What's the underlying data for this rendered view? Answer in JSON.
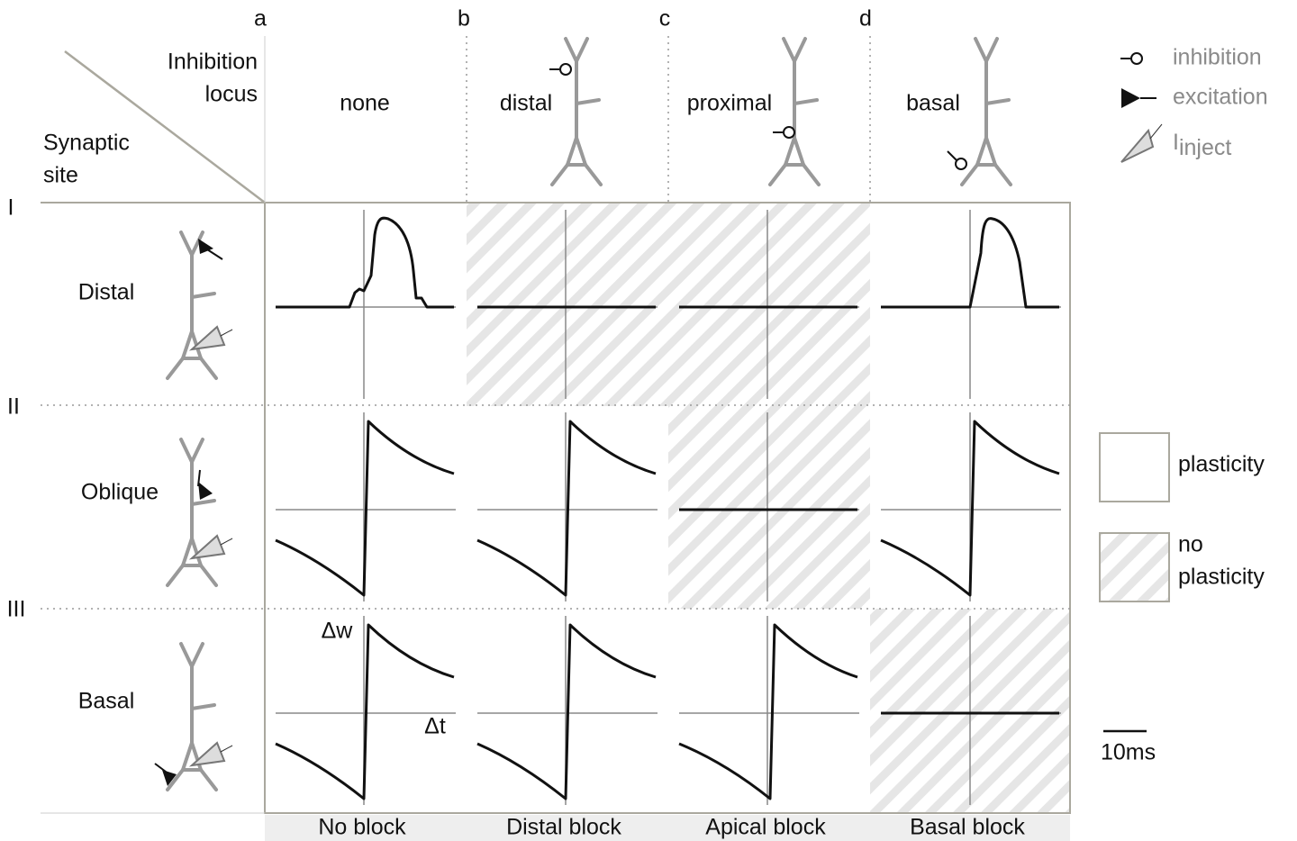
{
  "column_letters": [
    "a",
    "b",
    "c",
    "d"
  ],
  "inhibition_loci": [
    "none",
    "distal",
    "proximal",
    "basal"
  ],
  "footers": [
    "No block",
    "Distal block",
    "Apical block",
    "Basal block"
  ],
  "corner": {
    "column_heading": [
      "Inhibition",
      "locus"
    ],
    "row_heading": [
      "Synaptic",
      "site"
    ]
  },
  "row_numerals": [
    "I",
    "II",
    "III"
  ],
  "synaptic_sites": [
    "Distal",
    "Oblique",
    "Basal"
  ],
  "legend": {
    "inhibition": "inhibition",
    "excitation": "excitation",
    "inject": {
      "main": "I",
      "subscript": "inject"
    },
    "plasticity": "plasticity",
    "no_plasticity": [
      "no",
      "plasticity"
    ]
  },
  "scale_bar": "10ms",
  "axis_labels": {
    "y": "Δw",
    "x": "Δt"
  }
}
